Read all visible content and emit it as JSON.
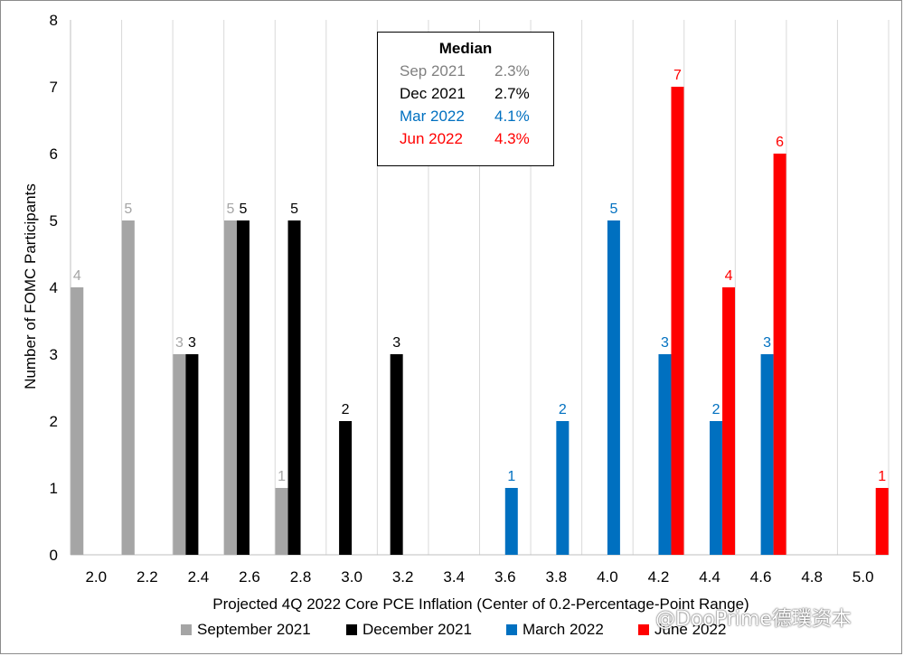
{
  "chart_data": {
    "type": "bar",
    "title": "",
    "xlabel": "Projected 4Q 2022 Core PCE Inflation (Center of 0.2-Percentage-Point Range)",
    "ylabel": "Number of FOMC Participants",
    "ylim": [
      0,
      8
    ],
    "yticks": [
      "0",
      "1",
      "2",
      "3",
      "4",
      "5",
      "6",
      "7",
      "8"
    ],
    "categories": [
      "2.0",
      "2.2",
      "2.4",
      "2.6",
      "2.8",
      "3.0",
      "3.2",
      "3.4",
      "3.6",
      "3.8",
      "4.0",
      "4.2",
      "4.4",
      "4.6",
      "4.8",
      "5.0"
    ],
    "grid": "vertical gridlines between categories",
    "legend_position": "bottom",
    "series": [
      {
        "name": "September 2021",
        "color": "#a5a5a5",
        "values": [
          4,
          5,
          3,
          5,
          1,
          0,
          0,
          0,
          0,
          0,
          0,
          0,
          0,
          0,
          0,
          0
        ]
      },
      {
        "name": "December 2021",
        "color": "#000000",
        "values": [
          0,
          0,
          3,
          5,
          5,
          2,
          3,
          0,
          0,
          0,
          0,
          0,
          0,
          0,
          0,
          0
        ]
      },
      {
        "name": "March 2022",
        "color": "#0070c0",
        "values": [
          0,
          0,
          0,
          0,
          0,
          0,
          0,
          0,
          1,
          2,
          5,
          3,
          2,
          3,
          0,
          0
        ]
      },
      {
        "name": "June 2022",
        "color": "#ff0000",
        "values": [
          0,
          0,
          0,
          0,
          0,
          0,
          0,
          0,
          0,
          0,
          0,
          7,
          4,
          6,
          0,
          1
        ]
      }
    ],
    "median_box": {
      "title": "Median",
      "rows": [
        {
          "label": "Sep 2021",
          "value": "2.3%",
          "color": "#808080"
        },
        {
          "label": "Dec 2021",
          "value": "2.7%",
          "color": "#000000"
        },
        {
          "label": "Mar 2022",
          "value": "4.1%",
          "color": "#0070c0"
        },
        {
          "label": "Jun 2022",
          "value": "4.3%",
          "color": "#ff0000"
        }
      ]
    }
  },
  "watermark": "@DooPrime德璞资本"
}
